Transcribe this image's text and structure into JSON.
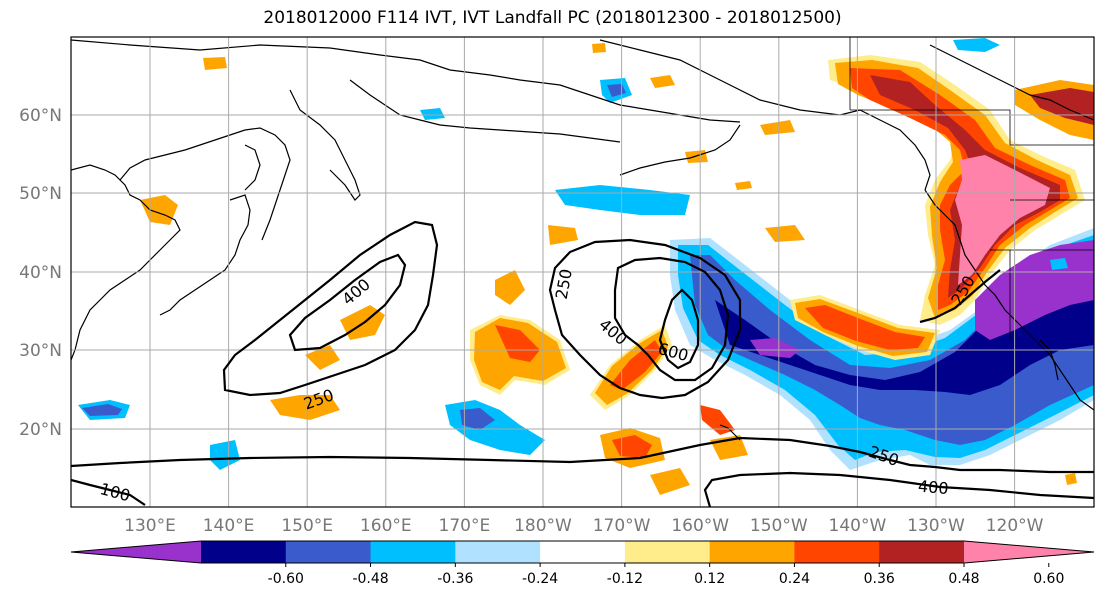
{
  "title": "2018012000 F114 IVT, IVT Landfall PC (2018012300 - 2018012500)",
  "lat_labels": [
    "60°N",
    "50°N",
    "40°N",
    "30°N",
    "20°N"
  ],
  "lon_labels": [
    "130°E",
    "140°E",
    "150°E",
    "160°E",
    "170°E",
    "180°W",
    "170°W",
    "160°W",
    "150°W",
    "140°W",
    "130°W",
    "120°W"
  ],
  "colorbar": {
    "colors": [
      "#9932cc",
      "#00008b",
      "#3a5bcc",
      "#00bfff",
      "#b0e2ff",
      "#ffffff",
      "#ffec8b",
      "#ffa500",
      "#ff4500",
      "#b22222",
      "#ff82ab"
    ],
    "tick_labels": [
      "-0.60",
      "-0.48",
      "-0.36",
      "-0.24",
      "-0.12",
      "0.12",
      "0.24",
      "0.36",
      "0.48",
      "0.60"
    ]
  },
  "contour_labels": [
    "400",
    "250",
    "250",
    "400",
    "600",
    "250",
    "250",
    "400",
    "100"
  ],
  "palette": {
    "neg_strong": "#9932cc",
    "neg_dark": "#00008b",
    "neg_mid": "#3a5bcc",
    "neg_light": "#00bfff",
    "neg_pale": "#b0e2ff",
    "pos_pale": "#ffec8b",
    "pos_light": "#ffa500",
    "pos_mid": "#ff4500",
    "pos_dark": "#b22222",
    "pos_strong": "#ff82ab"
  }
}
